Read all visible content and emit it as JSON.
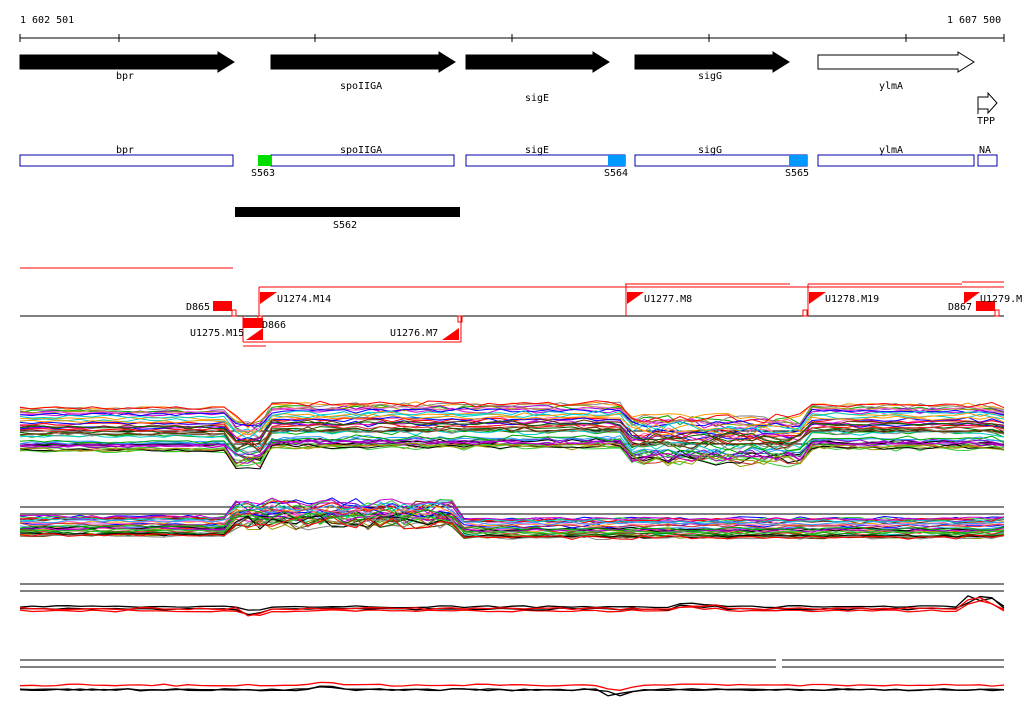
{
  "ruler": {
    "start_label": "1 602 501",
    "end_label": "1 607 500"
  },
  "genes": [
    {
      "name": "bpr",
      "strand": "+",
      "fill": "#000000"
    },
    {
      "name": "spoIIGA",
      "strand": "+",
      "fill": "#000000"
    },
    {
      "name": "sigE",
      "strand": "+",
      "fill": "#000000"
    },
    {
      "name": "sigG",
      "strand": "+",
      "fill": "#000000"
    },
    {
      "name": "ylmA",
      "strand": "+",
      "fill": "#ffffff"
    }
  ],
  "terminator": {
    "label": "TPP"
  },
  "annotation_boxes": [
    {
      "label": "bpr"
    },
    {
      "label": "spoIIGA"
    },
    {
      "label": "sigE"
    },
    {
      "label": "sigG"
    },
    {
      "label": "ylmA"
    },
    {
      "label": "NA"
    }
  ],
  "site_marks": [
    {
      "label": "S563",
      "color": "#00dd00"
    },
    {
      "label": "S564",
      "color": "#0099ff"
    },
    {
      "label": "S565",
      "color": "#0099ff"
    }
  ],
  "segment": {
    "label": "S562"
  },
  "transcription_units": [
    {
      "label": "D865"
    },
    {
      "label": "U1274.M14"
    },
    {
      "label": "D866"
    },
    {
      "label": "U1275.M15"
    },
    {
      "label": "U1276.M7"
    },
    {
      "label": "U1277.M8"
    },
    {
      "label": "U1278.M19"
    },
    {
      "label": "D867"
    },
    {
      "label": "U1279.M"
    }
  ],
  "colors": {
    "gene_outline": "#000000",
    "annotation_box": "#0000aa",
    "unit": "#ff0000",
    "axis": "#000000",
    "profile_palette": [
      "#ff0000",
      "#00aa00",
      "#0000ff",
      "#ff9900",
      "#9900cc",
      "#00cccc",
      "#cc00cc",
      "#999900",
      "#006600",
      "#663300",
      "#ff66cc",
      "#3399ff",
      "#33cc33",
      "#cc3333",
      "#000000",
      "#888888"
    ]
  },
  "expression_panels": [
    {
      "name": "panel-1",
      "profile_count": 42
    },
    {
      "name": "panel-2",
      "profile_count": 34
    },
    {
      "name": "panel-3",
      "profile_count": 4
    },
    {
      "name": "panel-4",
      "profile_count": 3
    }
  ]
}
